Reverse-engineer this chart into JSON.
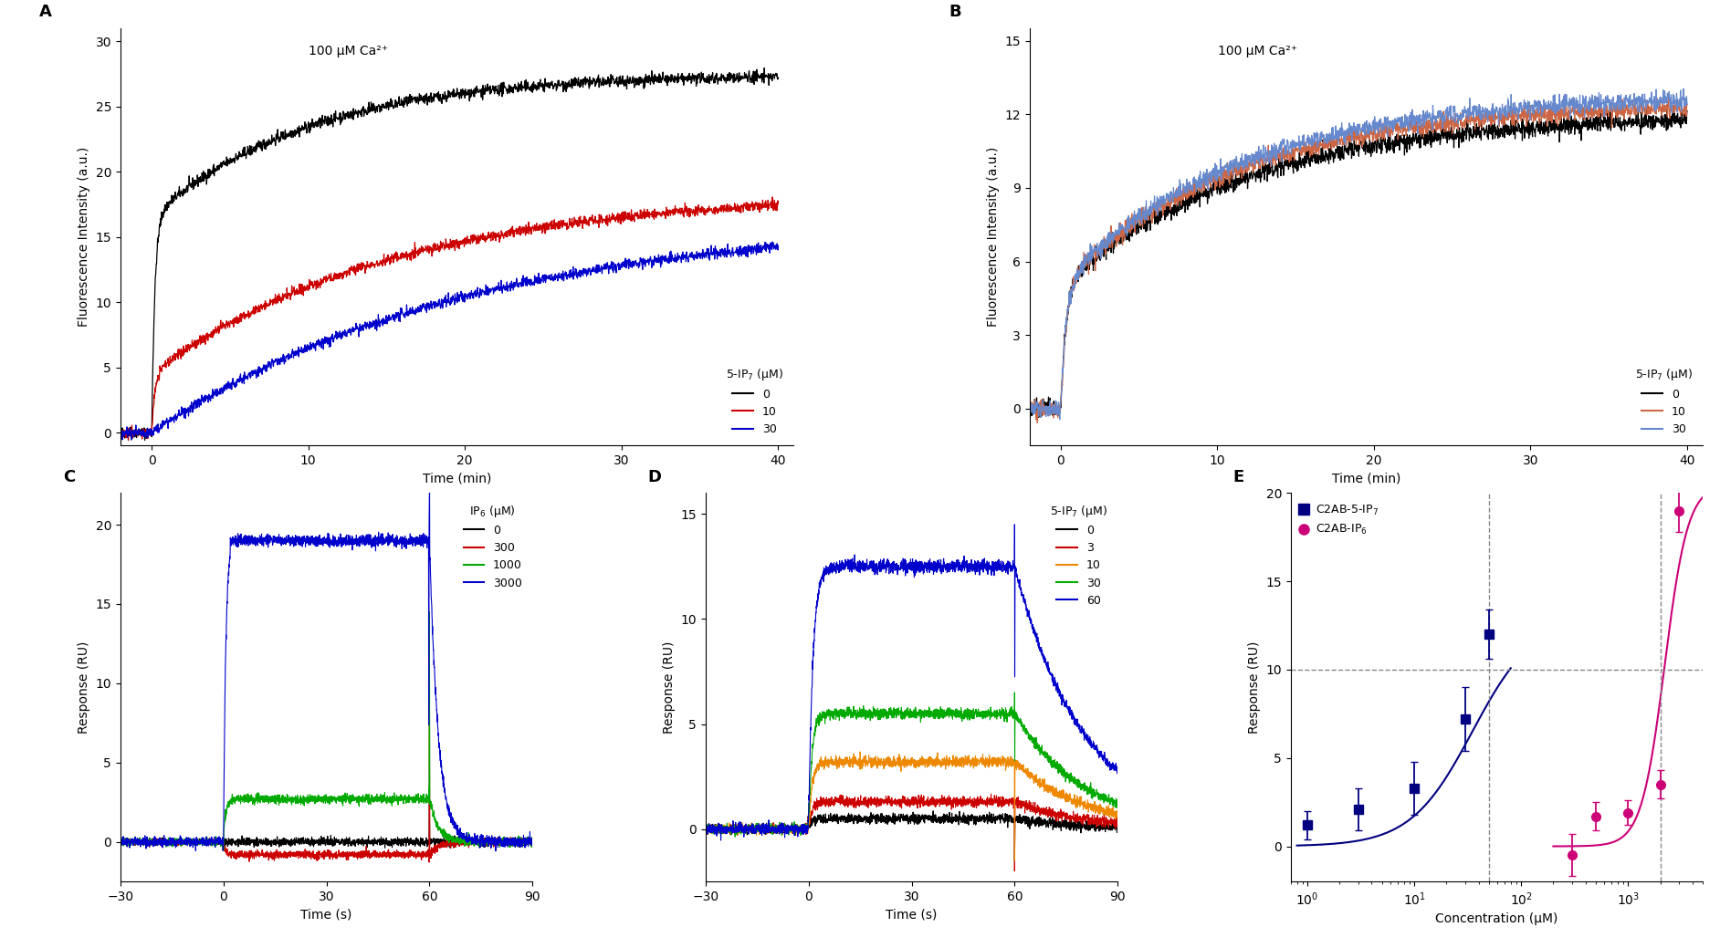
{
  "panel_A": {
    "label": "A",
    "annotation": "100 μM Ca²⁺",
    "xlabel": "Time (min)",
    "ylabel": "Fluorescence Intensity (a.u.)",
    "xlim": [
      -2,
      41
    ],
    "ylim": [
      -1,
      31
    ],
    "yticks": [
      0,
      5,
      10,
      15,
      20,
      25,
      30
    ],
    "xticks": [
      0,
      10,
      20,
      30,
      40
    ],
    "legend_title": "5-IP₇ (μM)",
    "legend_labels": [
      "0",
      "10",
      "30"
    ],
    "legend_colors": [
      "#000000",
      "#cc0000",
      "#0000cc"
    ]
  },
  "panel_B": {
    "label": "B",
    "annotation": "100 μM Ca²⁺",
    "xlabel": "Time (min)",
    "ylabel": "Fluorescence Intensity (a.u.)",
    "xlim": [
      -2,
      41
    ],
    "ylim": [
      -1.5,
      15.5
    ],
    "yticks": [
      0,
      3,
      6,
      9,
      12,
      15
    ],
    "xticks": [
      0,
      10,
      20,
      30,
      40
    ],
    "legend_title": "5-IP₇ (μM)",
    "legend_labels": [
      "0",
      "10",
      "30"
    ],
    "legend_colors": [
      "#000000",
      "#cc6644",
      "#6688cc"
    ]
  },
  "panel_C": {
    "label": "C",
    "xlabel": "Time (s)",
    "ylabel": "Response (RU)",
    "xlim": [
      -30,
      90
    ],
    "ylim": [
      -2.5,
      22
    ],
    "yticks": [
      0,
      5,
      10,
      15,
      20
    ],
    "xticks": [
      -30,
      0,
      30,
      60,
      90
    ],
    "legend_title": "IP₆ (μM)",
    "legend_labels": [
      "0",
      "300",
      "1000",
      "3000"
    ],
    "legend_colors": [
      "#000000",
      "#cc0000",
      "#00aa00",
      "#0000cc"
    ]
  },
  "panel_D": {
    "label": "D",
    "xlabel": "Time (s)",
    "ylabel": "Response (RU)",
    "xlim": [
      -30,
      90
    ],
    "ylim": [
      -2.5,
      16
    ],
    "yticks": [
      0,
      5,
      10,
      15
    ],
    "xticks": [
      -30,
      0,
      30,
      60,
      90
    ],
    "legend_title": "5-IP₇ (μM)",
    "legend_labels": [
      "0",
      "3",
      "10",
      "30",
      "60"
    ],
    "legend_colors": [
      "#000000",
      "#cc0000",
      "#ee8800",
      "#00aa00",
      "#0000cc"
    ]
  },
  "panel_E": {
    "label": "E",
    "xlabel": "Concentration (μM)",
    "ylabel": "Response (RU)",
    "ylim": [
      -2,
      20
    ],
    "yticks": [
      0,
      5,
      10,
      15,
      20
    ],
    "hline": 10.0,
    "vline1": 50,
    "vline2": 2000,
    "conc_5ip7": [
      1,
      3,
      10,
      30,
      50
    ],
    "resp_5ip7": [
      1.2,
      2.1,
      3.3,
      7.2,
      12.0
    ],
    "err_5ip7": [
      0.8,
      1.2,
      1.5,
      1.8,
      1.4
    ],
    "conc_ip6": [
      300,
      500,
      1000,
      2000,
      3000
    ],
    "resp_ip6": [
      -0.5,
      1.7,
      1.9,
      3.5,
      19.0
    ],
    "err_ip6": [
      1.2,
      0.8,
      0.7,
      0.8,
      1.2
    ],
    "legend_labels": [
      "C2AB-5-IP₇",
      "C2AB-IP₆"
    ],
    "legend_colors": [
      "#000080",
      "#cc0077"
    ]
  }
}
